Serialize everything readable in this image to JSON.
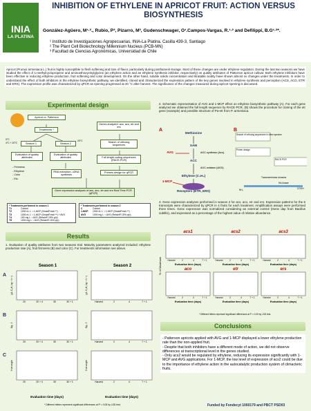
{
  "header": {
    "logo": [
      "INIA",
      "LA PLATINA"
    ],
    "title": "INHIBITION OF ETHYLENE IN APRICOT FRUIT: ACTION VERSUS BIOSYNTHESIS",
    "authors": "González-Agüero, M¹·²., Rubio, P³, Pizarro, M³, Gudenschwager, O¹.Campos-Vargas, R.¹·² and Defilippi, B.G¹·²*.",
    "affiliations": [
      "¹ Instituto de Investigaciones Agropecuarias, INIA-La Platina. Casilla 439-3, Santiago",
      "² The Plant Cell Biotechnology Millennium Nucleus (PCB-MN)",
      "³ Facultad de Ciencias Agronómicas, Universidad de Chile"
    ]
  },
  "abstract": "Apricot (Prunus armeniaca L.) fruit is highly susceptible to flesh softening and loss of flavor, particularly during postharvest storage. Most of these changes are under ethylene regulation. During the last two seasons we have studied the effect of 1-methylcyclopropene and aminoethoxyvinylglycine (an ethylene action and an ethylene synthesis inhibitor, respectively) on quality attributes of Patterson apricot cultivar. Both ethylene inhibitors have been effective in reducing ethylene production, fruit softening and color development. On the other hand, soluble solids concentration and titratable acidity have shown almost no changes under the treatments. In order to understand the effect of both inhibitors in the ethylene biosynthetic pathway, we identified, cloned and characterized the expression pattern of the key genes involved in ethylene synthesis and perception (ACS, ACO, ETR and ERS). The expression profile was characterized by qPCR as ripening progressed at 20 °C after harvest. The significance of the changes measured during apricot ripening is discussed.",
  "experimental_design": {
    "heading": "Experimental design",
    "fruit": "Apricot cv. Patterson",
    "treatments": "Treatments *",
    "season1": "Season 1",
    "season2": "Season 2",
    "temp1": "0°C",
    "temp2": "4°C + 20°C",
    "temp3": "20°C",
    "quality1": "Evaluation of quality attributes",
    "quality2": "Evaluation of quality attributes",
    "attributes": [
      "- Firmness",
      "- Ethylene",
      "- Color",
      "- Etc."
    ],
    "rna": "RNA extraction, cDNA synthesis",
    "genes": "Genes analyzed: acs, aco, etr and ers",
    "ortholog": "Search of ortholog sequences",
    "race": "Full length coding sequences (RACE-PCR)",
    "primers": "Primers design for qPCR",
    "qpcr": "Gene expression analyses of acs, aco, etr and ers Real Time PCR (qPCR)",
    "table1": {
      "title": "* Treatments performed in season 1",
      "rows": [
        [
          "T1",
          "Control"
        ],
        [
          "T2",
          "1000 nL L⁻¹ 1-MCP (SmartFresh™)"
        ],
        [
          "T3",
          "1000 nL L⁻¹ 1-MCP (SmartFresh™) + AVG"
        ],
        [
          "T4",
          "150 mg L⁻¹ AVG (Retain® 15% p/p)"
        ],
        [
          "T5",
          "1000 mg L⁻¹ AVG (Retain® 15% p/p)"
        ]
      ]
    },
    "table2": {
      "title": "* Treatments performed in season 2",
      "rows": [
        [
          "C",
          "Control"
        ],
        [
          "1-MCP",
          "1000 nL L⁻¹ 1-MCP (SmartFresh™)"
        ],
        [
          "AVG",
          "1000 mg L⁻¹ AVG (Retain® 15% p/p)"
        ]
      ]
    }
  },
  "results": {
    "heading": "Results",
    "paragraph": "1. Evaluation of quality attributes from two seasons trial. Maturity parameters analyzed included: ethylene production rate (A), fruit firmness (B) and color (C). For treatments information see above.",
    "columns": [
      "Season 1",
      "Season 2"
    ],
    "panels": [
      "A",
      "B",
      "C"
    ],
    "y_labels": [
      "(µL C₂H₄ kg⁻¹ h⁻¹)",
      "Kg - f",
      "Hue angle"
    ],
    "x_ticks_season1": [
      "20",
      "20 + 4",
      "30",
      "30 + 1"
    ],
    "x_ticks_season2": [
      "Harvest",
      "2",
      "4",
      "7 + 1"
    ],
    "x_label": "Evaluation time (days)",
    "footnote": "* Different letters represent significant differences at P < 0.05 by LSD test."
  },
  "pathway": {
    "paragraph": "2. Schematic representation of AVG and 1-MCP effect on ethylene biosynthetic pathway (A). For each gene analyzed we obtained the full length sequence by RACE-PCR. (B) shows the procedure for cloning of the etr gene (example) and possible structure of Pa-etr from P. armeniaca.",
    "panel_a": "A",
    "panel_b": "B",
    "nodes": [
      "Methionine",
      "SAM",
      "ACC synthase (Acs)",
      "ACC",
      "ACC oxidase (ACO)",
      "Ethylene (C₂H₄)",
      "Receptors (ETR, ERS)",
      "AVG",
      "1-MCP"
    ],
    "b_labels": [
      "Search of ortholog sequences in other species",
      "Primer design",
      "RACE-PCR",
      "Transmembrane domains",
      "His kinase",
      "COOH",
      "NH₂"
    ]
  },
  "expression": {
    "paragraph": "3. Gene expression analyses performed in season 2 for acs, aco, etr and ers. Expression patterns for the 6 transcripts were characterized by qPCR in 4 fruits for each treatment. Amplification assays were performed three times. Gene expression was normalized considering an external control (Gene dap from Bacillus subtilis), and expressed as a percentage of the highest value of relative abundance.",
    "genes": [
      "acs1",
      "acs2",
      "acs3",
      "aco",
      "etr",
      "ers"
    ],
    "y_label": "% of Maximum",
    "x_ticks": [
      "Harvest",
      "2",
      "4",
      "7 + 1"
    ],
    "x_label": "Evaluation time (days)",
    "footnote": "* Different letters represent significant differences at P < 0.05 by LSD test."
  },
  "conclusions": {
    "heading": "Conclusions",
    "items": [
      "- Patterson apricots applied with AVG and 1-MCP displayed a lower ethylene production rate than the non-applied fruit.",
      "- Despite that both inhibitors have a different mode of action, we did not observe differences at transcriptional level in the genes studied.",
      "- Only acs2 would be regulated by ethylene, reducing its expression significantly with 1-MCP and AVG applications. For 1-MCP, the low level of expression of acs2 could be due to the importance of ethylene action in the autocatalytic production system of climacteric fruits."
    ]
  },
  "funding": "Funded by Fondecyt 1060179 and PBCT PSD03"
}
